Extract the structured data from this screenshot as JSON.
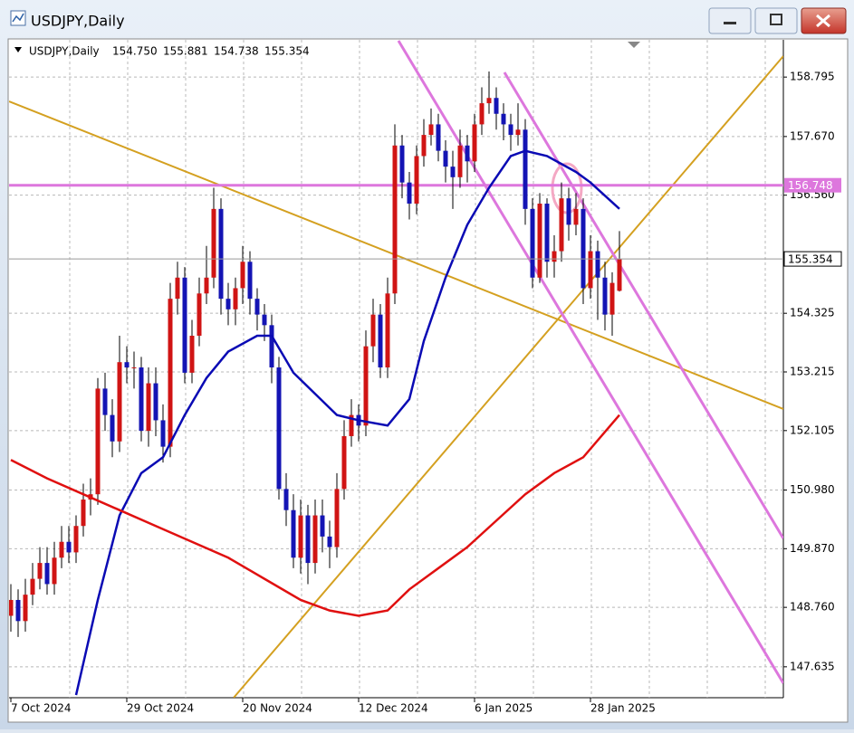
{
  "chart_data": {
    "type": "candlestick",
    "title": "USDJPY,Daily",
    "quote_labels": [
      "154.750",
      "155.881",
      "154.738",
      "155.354"
    ],
    "up_color": "#d01414",
    "down_color": "#1414b4",
    "wick_color": "#000000",
    "open": [
      148.6,
      148.9,
      148.5,
      149.0,
      149.3,
      149.6,
      149.2,
      149.7,
      150.0,
      149.8,
      150.3,
      150.8,
      150.9,
      152.9,
      152.4,
      151.9,
      153.4,
      153.3,
      153.3,
      152.1,
      153.0,
      152.3,
      151.8,
      154.6,
      155.0,
      153.2,
      153.9,
      154.7,
      155.0,
      156.3,
      154.6,
      154.4,
      154.8,
      155.3,
      154.6,
      154.3,
      154.1,
      153.3,
      151.0,
      150.6,
      149.7,
      150.5,
      149.6,
      150.5,
      150.1,
      149.9,
      151.0,
      152.0,
      152.4,
      152.2,
      153.7,
      154.3,
      153.3,
      154.7,
      157.5,
      156.8,
      156.4,
      157.3,
      157.7,
      157.9,
      157.4,
      157.1,
      156.9,
      157.5,
      157.2,
      157.9,
      158.3,
      158.4,
      158.1,
      157.9,
      157.7,
      157.8,
      156.3,
      155.0,
      156.4,
      155.3,
      155.5,
      156.5,
      156.0,
      156.3,
      154.8,
      155.5,
      155.0,
      154.3,
      154.75
    ],
    "high": [
      149.2,
      149.1,
      149.3,
      149.6,
      149.9,
      149.9,
      150.0,
      150.3,
      150.3,
      150.5,
      151.1,
      151.2,
      153.1,
      153.2,
      152.7,
      153.9,
      153.7,
      153.6,
      153.5,
      153.3,
      153.3,
      152.6,
      154.9,
      155.3,
      155.2,
      154.2,
      155.0,
      155.6,
      156.7,
      156.5,
      154.9,
      155.0,
      155.6,
      155.5,
      154.8,
      154.5,
      154.3,
      153.5,
      151.3,
      150.9,
      150.8,
      150.7,
      150.8,
      150.8,
      150.4,
      151.3,
      152.3,
      152.7,
      152.6,
      154.0,
      154.6,
      154.5,
      155.0,
      157.9,
      157.7,
      157.0,
      157.5,
      158.0,
      158.2,
      158.1,
      157.6,
      157.4,
      157.8,
      157.7,
      158.1,
      158.6,
      158.9,
      158.6,
      158.3,
      158.1,
      158.3,
      158.0,
      156.5,
      156.6,
      156.5,
      155.8,
      156.8,
      156.7,
      156.6,
      156.5,
      155.8,
      155.7,
      155.3,
      155.1,
      155.881
    ],
    "low": [
      148.3,
      148.2,
      148.3,
      148.8,
      149.1,
      149.0,
      149.0,
      149.5,
      149.6,
      149.6,
      150.1,
      150.5,
      150.7,
      152.1,
      151.6,
      151.7,
      153.0,
      152.9,
      151.9,
      151.8,
      152.0,
      151.5,
      151.6,
      154.3,
      153.0,
      153.0,
      153.7,
      154.5,
      154.8,
      154.3,
      154.1,
      154.1,
      154.5,
      154.3,
      154.0,
      153.8,
      153.0,
      150.8,
      150.3,
      149.5,
      149.4,
      149.2,
      149.4,
      149.8,
      149.5,
      149.7,
      150.8,
      151.8,
      151.9,
      152.0,
      153.4,
      153.1,
      153.1,
      154.5,
      156.5,
      156.1,
      156.2,
      157.1,
      157.5,
      157.2,
      156.8,
      156.3,
      156.7,
      156.8,
      157.0,
      157.7,
      158.1,
      157.8,
      157.6,
      157.4,
      157.5,
      156.0,
      154.8,
      154.9,
      155.0,
      155.0,
      155.3,
      155.7,
      155.8,
      154.5,
      154.6,
      154.2,
      154.0,
      153.9,
      154.738
    ],
    "close": [
      148.9,
      148.5,
      149.0,
      149.3,
      149.6,
      149.2,
      149.7,
      150.0,
      149.8,
      150.3,
      150.8,
      150.9,
      152.9,
      152.4,
      151.9,
      153.4,
      153.3,
      153.3,
      152.1,
      153.0,
      152.3,
      151.8,
      154.6,
      155.0,
      153.2,
      153.9,
      154.7,
      155.0,
      156.3,
      154.6,
      154.4,
      154.8,
      155.3,
      154.6,
      154.3,
      154.1,
      153.3,
      151.0,
      150.6,
      149.7,
      150.5,
      149.6,
      150.5,
      150.1,
      149.9,
      151.0,
      152.0,
      152.4,
      152.2,
      153.7,
      154.3,
      153.3,
      154.7,
      157.5,
      156.8,
      156.4,
      157.3,
      157.7,
      157.9,
      157.4,
      157.1,
      156.9,
      157.5,
      157.2,
      157.9,
      158.3,
      158.4,
      158.1,
      157.9,
      157.7,
      157.8,
      156.3,
      155.0,
      156.4,
      155.3,
      155.5,
      156.5,
      156.0,
      156.3,
      154.8,
      155.5,
      155.0,
      154.3,
      154.9,
      155.354
    ],
    "series": [
      {
        "color": "#0a0ab4",
        "x": [
          9,
          12,
          15,
          18,
          21,
          24,
          27,
          30,
          34,
          36,
          39,
          42,
          45,
          48,
          52,
          55,
          57,
          60,
          63,
          66,
          69,
          71,
          74,
          78,
          80,
          84
        ],
        "values": [
          147.1,
          148.9,
          150.5,
          151.3,
          151.6,
          152.4,
          153.1,
          153.6,
          153.9,
          153.9,
          153.2,
          152.8,
          152.4,
          152.3,
          152.2,
          152.7,
          153.8,
          155.0,
          156.0,
          156.7,
          157.3,
          157.4,
          157.3,
          157.0,
          156.8,
          156.3
        ]
      },
      {
        "color": "#e01010",
        "x": [
          0,
          5,
          10,
          15,
          20,
          25,
          30,
          35,
          40,
          44,
          48,
          52,
          55,
          59,
          63,
          67,
          71,
          75,
          79,
          84
        ],
        "values": [
          151.55,
          151.2,
          150.9,
          150.6,
          150.3,
          150.0,
          149.7,
          149.3,
          148.9,
          148.7,
          148.6,
          148.7,
          149.1,
          149.5,
          149.9,
          150.4,
          150.9,
          151.3,
          151.6,
          152.4
        ]
      }
    ],
    "levels": [
      {
        "value": 156.748,
        "color": "#dd77dd"
      }
    ],
    "ylim": [
      147.05,
      159.5
    ],
    "yticks": [
      158.795,
      {
        "value": 157.67,
        "label": "157.670"
      },
      {
        "value": 156.56,
        "label": "156.560"
      },
      154.325,
      153.215,
      152.105,
      {
        "value": 150.98,
        "label": "150.980"
      },
      {
        "value": 149.87,
        "label": "149.870"
      },
      {
        "value": 148.76,
        "label": "148.760"
      },
      147.635
    ],
    "xlim": [
      0,
      84
    ],
    "xticks": [
      {
        "value": 0,
        "label": "7 Oct 2024"
      },
      {
        "value": 16,
        "label": "29 Oct 2024"
      },
      {
        "value": 32,
        "label": "20 Nov 2024"
      },
      {
        "value": 48,
        "label": "12 Dec 2024"
      },
      {
        "value": 64,
        "label": "6 Jan 2025"
      },
      {
        "value": 80,
        "label": "28 Jan 2025"
      }
    ],
    "grid": true
  }
}
